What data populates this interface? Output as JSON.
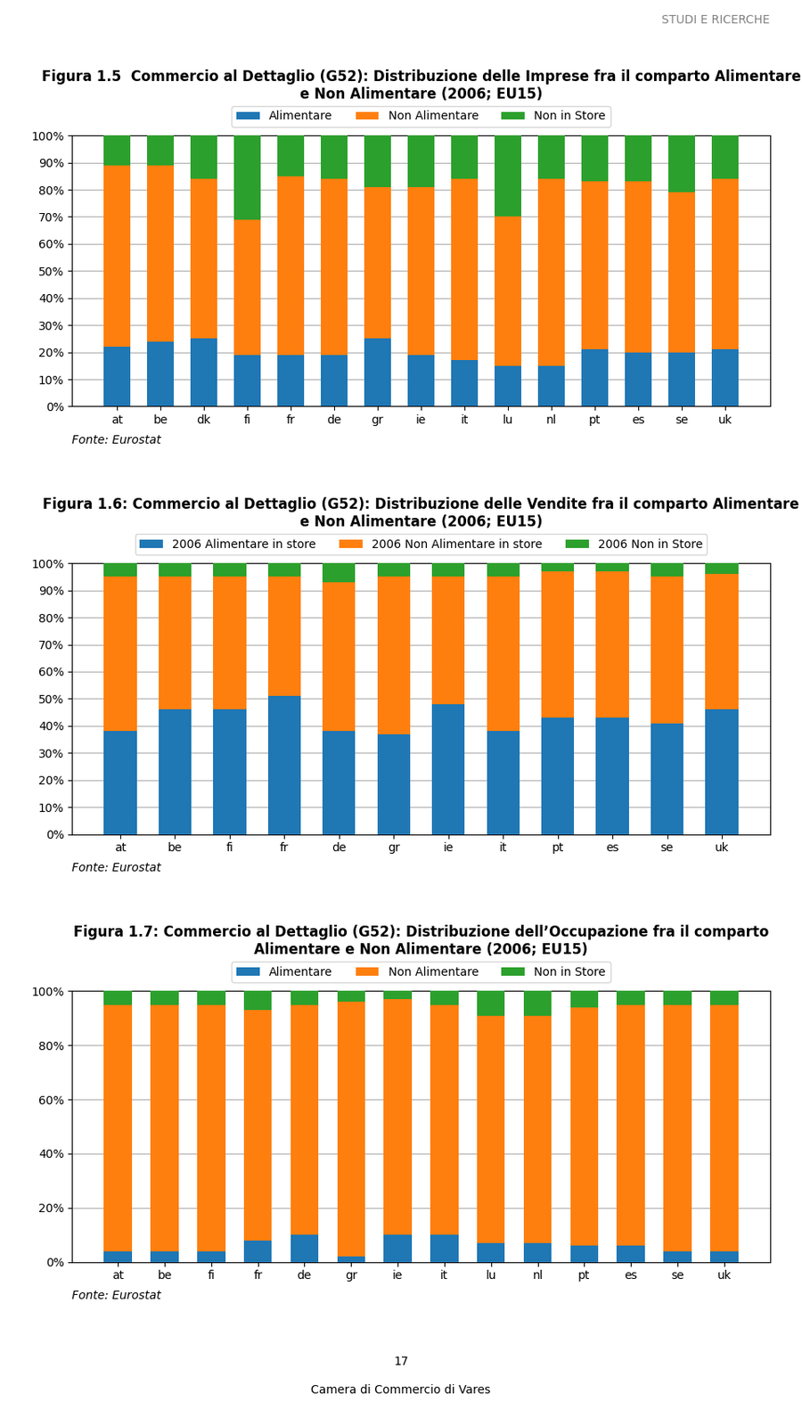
{
  "chart_data": [
    {
      "type": "bar",
      "stacked": true,
      "grid": true,
      "legend": "upper center",
      "title": "Figura 1.5  Commercio al Dettaglio (G52): Distribuzione delle Imprese fra il comparto Alimentare e Non Alimentare (2006; EU15)",
      "annotations": [
        "Fonte: Eurostat"
      ],
      "categories": [
        "at",
        "be",
        "dk",
        "fi",
        "fr",
        "de",
        "gr",
        "ie",
        "it",
        "lu",
        "nl",
        "pt",
        "es",
        "se",
        "uk"
      ],
      "series": [
        {
          "name": "Alimentare",
          "values": [
            0.22,
            0.24,
            0.25,
            0.19,
            0.19,
            0.19,
            0.25,
            0.19,
            0.17,
            0.15,
            0.15,
            0.21,
            0.2,
            0.2,
            0.21
          ]
        },
        {
          "name": "Non Alimentare",
          "values": [
            0.67,
            0.65,
            0.59,
            0.5,
            0.66,
            0.65,
            0.56,
            0.62,
            0.67,
            0.55,
            0.69,
            0.62,
            0.63,
            0.59,
            0.63
          ]
        },
        {
          "name": "Non in Store",
          "values": [
            0.11,
            0.11,
            0.16,
            0.31,
            0.15,
            0.16,
            0.19,
            0.19,
            0.16,
            0.3,
            0.16,
            0.17,
            0.17,
            0.21,
            0.16
          ]
        }
      ],
      "ylim": [
        0,
        1.0
      ],
      "yticks": [
        {
          "value": 0.0,
          "label": "0%"
        },
        {
          "value": 0.1,
          "label": "10%"
        },
        {
          "value": 0.2,
          "label": "20%"
        },
        {
          "value": 0.3,
          "label": "30%"
        },
        {
          "value": 0.4,
          "label": "40%"
        },
        {
          "value": 0.5,
          "label": "50%"
        },
        {
          "value": 0.6,
          "label": "60%"
        },
        {
          "value": 0.7,
          "label": "70%"
        },
        {
          "value": 0.8,
          "label": "80%"
        },
        {
          "value": 0.9,
          "label": "90%"
        },
        {
          "value": 1.0,
          "label": "100%"
        }
      ]
    },
    {
      "type": "bar",
      "stacked": true,
      "grid": true,
      "legend": "upper center",
      "title": "Figura 1.6: Commercio al Dettaglio (G52): Distribuzione delle Vendite fra il comparto Alimentare e Non Alimentare (2006; EU15)",
      "annotations": [
        "Fonte: Eurostat"
      ],
      "categories": [
        "at",
        "be",
        "fi",
        "fr",
        "de",
        "gr",
        "ie",
        "it",
        "pt",
        "es",
        "se",
        "uk"
      ],
      "series": [
        {
          "name": "2006 Alimentare in store",
          "values": [
            0.38,
            0.46,
            0.46,
            0.51,
            0.38,
            0.37,
            0.48,
            0.38,
            0.43,
            0.43,
            0.41,
            0.46
          ]
        },
        {
          "name": "2006 Non Alimentare in store",
          "values": [
            0.57,
            0.49,
            0.49,
            0.44,
            0.55,
            0.58,
            0.47,
            0.57,
            0.54,
            0.54,
            0.54,
            0.5
          ]
        },
        {
          "name": "2006 Non in Store",
          "values": [
            0.05,
            0.05,
            0.05,
            0.05,
            0.07,
            0.05,
            0.05,
            0.05,
            0.03,
            0.03,
            0.05,
            0.04
          ]
        }
      ],
      "ylim": [
        0,
        1.0
      ],
      "yticks": [
        {
          "value": 0.0,
          "label": "0%"
        },
        {
          "value": 0.1,
          "label": "10%"
        },
        {
          "value": 0.2,
          "label": "20%"
        },
        {
          "value": 0.3,
          "label": "30%"
        },
        {
          "value": 0.4,
          "label": "40%"
        },
        {
          "value": 0.5,
          "label": "50%"
        },
        {
          "value": 0.6,
          "label": "60%"
        },
        {
          "value": 0.7,
          "label": "70%"
        },
        {
          "value": 0.8,
          "label": "80%"
        },
        {
          "value": 0.9,
          "label": "90%"
        },
        {
          "value": 1.0,
          "label": "100%"
        }
      ]
    },
    {
      "type": "bar",
      "stacked": true,
      "grid": true,
      "legend": "upper center",
      "title": "Figura 1.7: Commercio al Dettaglio (G52): Distribuzione dell’Occupazione fra il comparto Alimentare e Non Alimentare (2006; EU15)",
      "annotations": [
        "Fonte: Eurostat"
      ],
      "categories": [
        "at",
        "be",
        "fi",
        "fr",
        "de",
        "gr",
        "ie",
        "it",
        "lu",
        "nl",
        "pt",
        "es",
        "se",
        "uk"
      ],
      "series": [
        {
          "name": "Alimentare",
          "values": [
            0.04,
            0.04,
            0.04,
            0.08,
            0.1,
            0.02,
            0.1,
            0.1,
            0.07,
            0.07,
            0.06,
            0.06,
            0.04,
            0.04
          ]
        },
        {
          "name": "Non Alimentare",
          "values": [
            0.91,
            0.91,
            0.91,
            0.85,
            0.85,
            0.94,
            0.87,
            0.85,
            0.84,
            0.84,
            0.88,
            0.89,
            0.91,
            0.91
          ]
        },
        {
          "name": "Non in Store",
          "values": [
            0.05,
            0.05,
            0.05,
            0.07,
            0.05,
            0.04,
            0.03,
            0.05,
            0.09,
            0.09,
            0.06,
            0.05,
            0.05,
            0.05
          ]
        }
      ],
      "ylim": [
        0,
        1.0
      ],
      "yticks": [
        {
          "value": 0.0,
          "label": "0%"
        },
        {
          "value": 0.2,
          "label": "20%"
        },
        {
          "value": 0.4,
          "label": "40%"
        },
        {
          "value": 0.6,
          "label": "60%"
        },
        {
          "value": 0.8,
          "label": "80%"
        },
        {
          "value": 1.0,
          "label": "100%"
        }
      ]
    }
  ],
  "annotations": [
    "STUDI E RICERCHE",
    "17",
    "Camera di Commercio di Vares"
  ]
}
